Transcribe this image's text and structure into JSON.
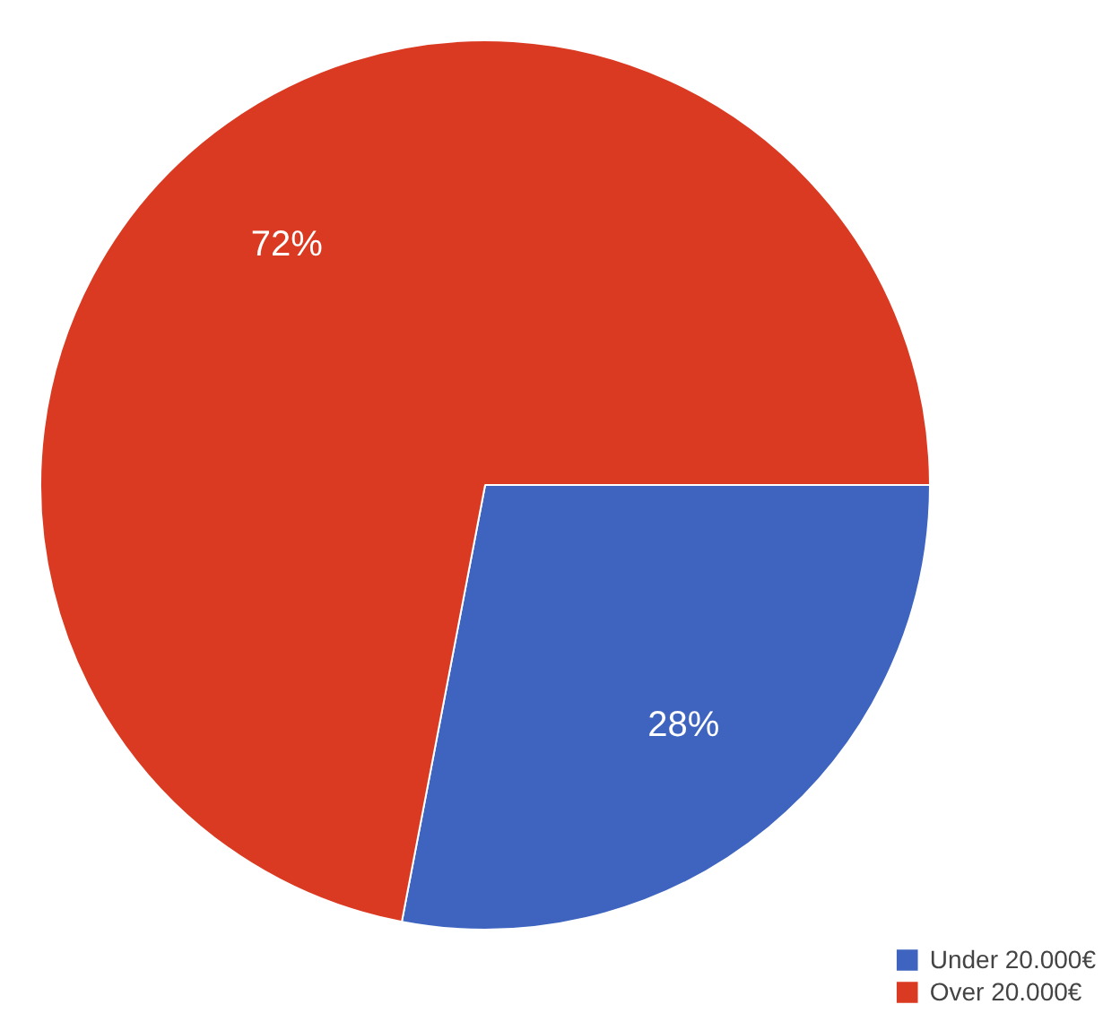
{
  "chart_data": {
    "type": "pie",
    "categories": [
      "Under 20.000€",
      "Over 20.000€"
    ],
    "values": [
      28,
      72
    ],
    "colors": [
      "#3e64c0",
      "#db3a22"
    ],
    "value_labels": [
      "28%",
      "72%"
    ],
    "legend": "bottom right"
  }
}
